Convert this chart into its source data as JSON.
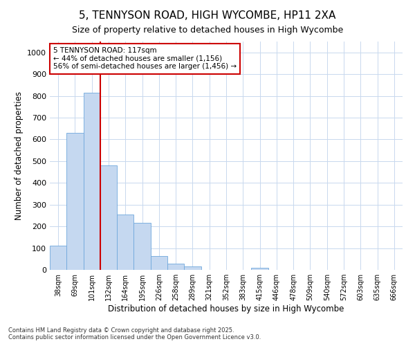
{
  "title_line1": "5, TENNYSON ROAD, HIGH WYCOMBE, HP11 2XA",
  "title_line2": "Size of property relative to detached houses in High Wycombe",
  "xlabel": "Distribution of detached houses by size in High Wycombe",
  "ylabel": "Number of detached properties",
  "categories": [
    "38sqm",
    "69sqm",
    "101sqm",
    "132sqm",
    "164sqm",
    "195sqm",
    "226sqm",
    "258sqm",
    "289sqm",
    "321sqm",
    "352sqm",
    "383sqm",
    "415sqm",
    "446sqm",
    "478sqm",
    "509sqm",
    "540sqm",
    "572sqm",
    "603sqm",
    "635sqm",
    "666sqm"
  ],
  "values": [
    110,
    630,
    815,
    480,
    255,
    215,
    63,
    28,
    15,
    0,
    0,
    0,
    8,
    0,
    0,
    0,
    0,
    0,
    0,
    0,
    0
  ],
  "bar_color": "#c5d8f0",
  "bar_edge_color": "#6fa8dc",
  "grid_color": "#c8d8ee",
  "background_color": "#ffffff",
  "plot_bg_color": "#ffffff",
  "vline_color": "#cc0000",
  "vline_x_index": 2,
  "annotation_line1": "5 TENNYSON ROAD: 117sqm",
  "annotation_line2": "← 44% of detached houses are smaller (1,156)",
  "annotation_line3": "56% of semi-detached houses are larger (1,456) →",
  "annotation_box_facecolor": "#ffffff",
  "annotation_box_edgecolor": "#cc0000",
  "ylim": [
    0,
    1050
  ],
  "yticks": [
    0,
    100,
    200,
    300,
    400,
    500,
    600,
    700,
    800,
    900,
    1000
  ],
  "title1_fontsize": 11,
  "title2_fontsize": 9,
  "footnote1": "Contains HM Land Registry data © Crown copyright and database right 2025.",
  "footnote2": "Contains public sector information licensed under the Open Government Licence v3.0."
}
